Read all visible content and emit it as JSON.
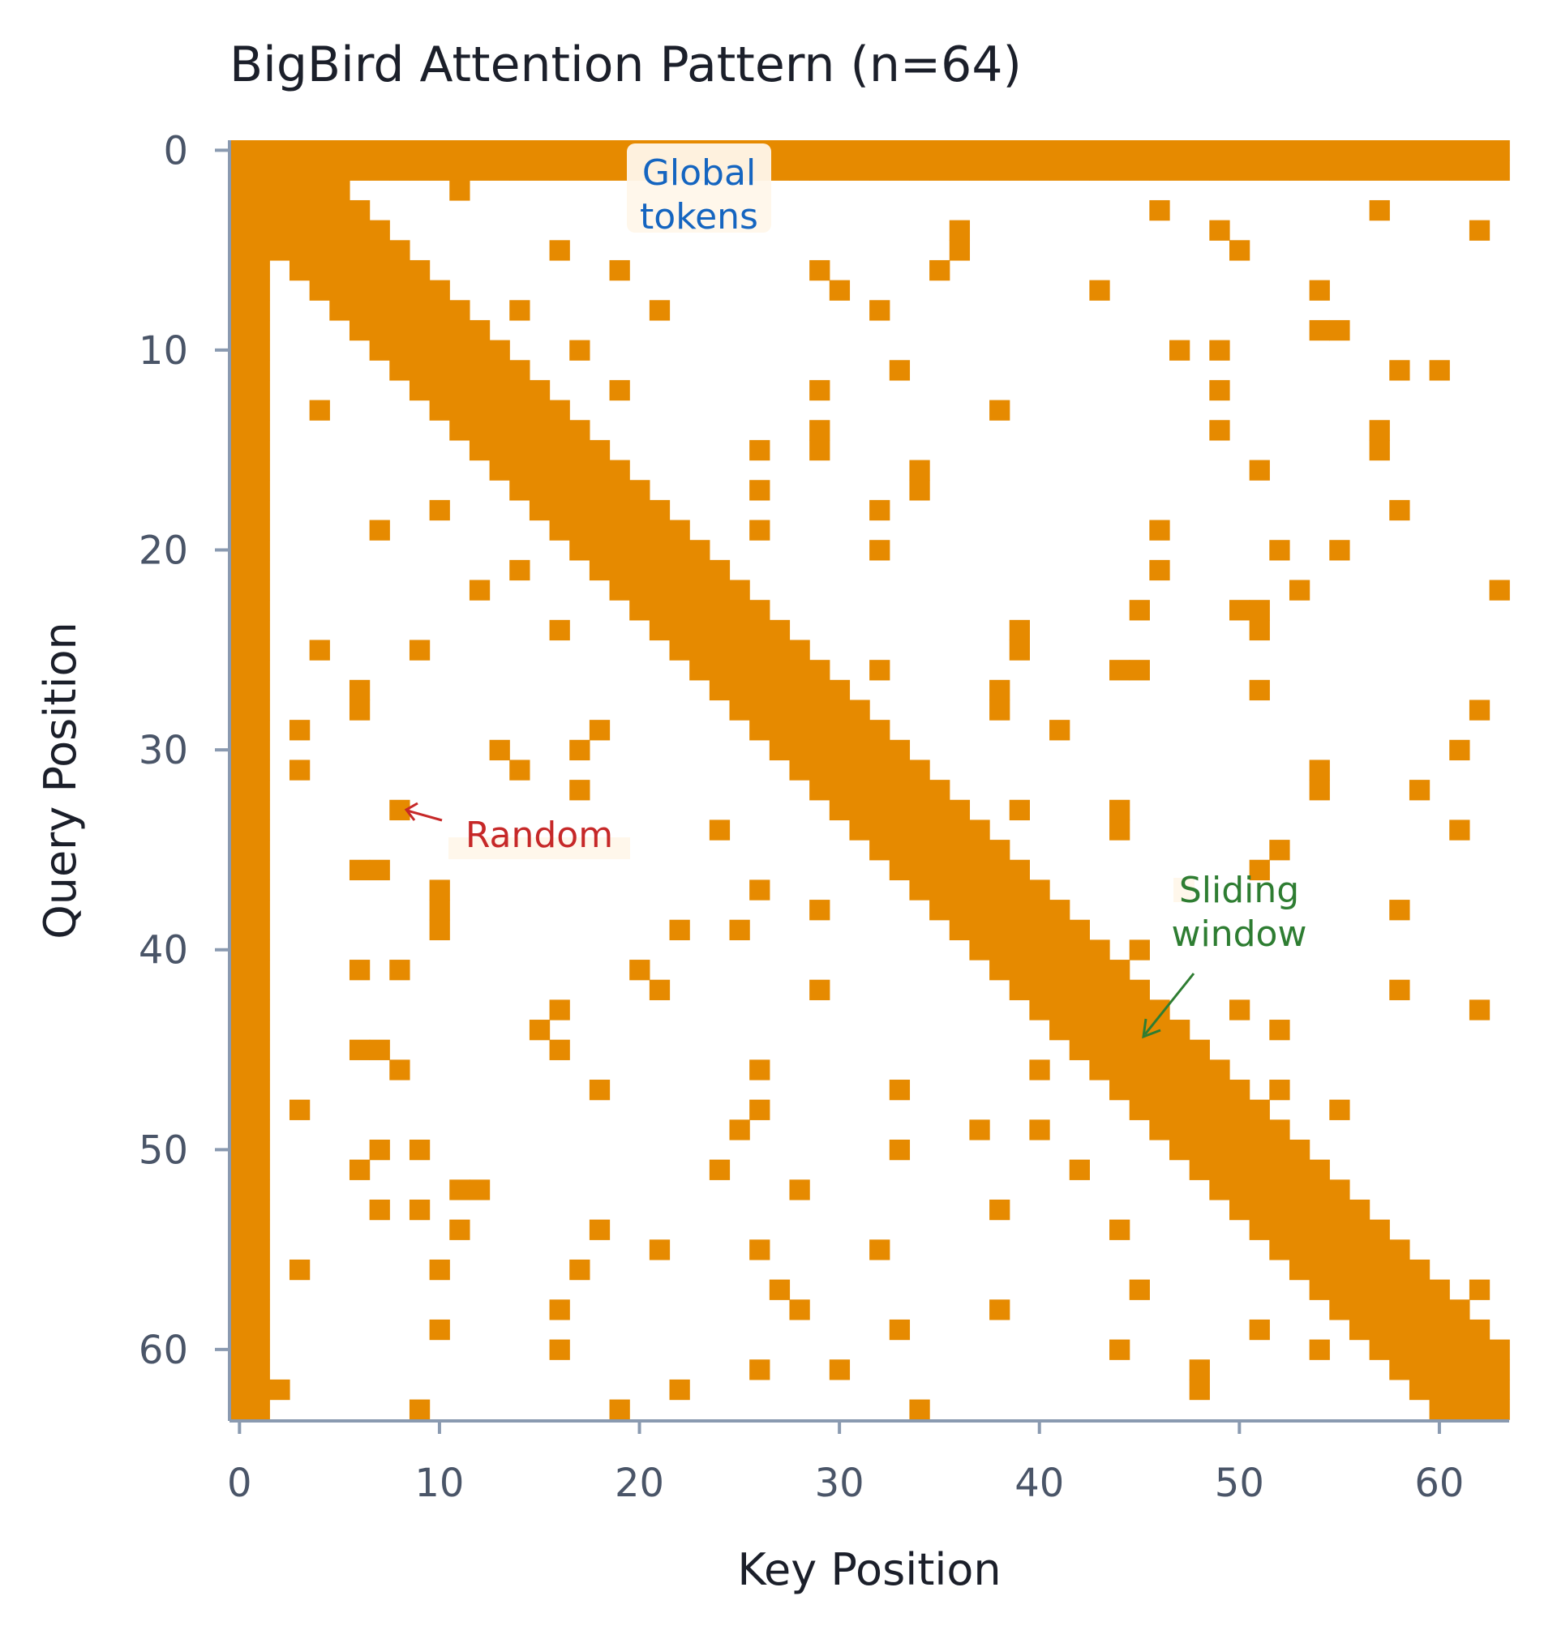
{
  "chart_data": {
    "type": "heatmap",
    "title": "BigBird Attention Pattern (n=64)",
    "xlabel": "Key Position",
    "ylabel": "Query Position",
    "n": 64,
    "xlim": [
      0,
      63
    ],
    "ylim": [
      63,
      0
    ],
    "xticks": [
      "0",
      "10",
      "20",
      "30",
      "40",
      "50",
      "60"
    ],
    "yticks": [
      "0",
      "10",
      "20",
      "30",
      "40",
      "50",
      "60"
    ],
    "grid": false,
    "cell_color": "#e68a00",
    "background_color": "#ffffff",
    "global_tokens": [
      0,
      1
    ],
    "window_radius": 3,
    "random_cells": [
      [
        1,
        10
      ],
      [
        1,
        43
      ],
      [
        1,
        50
      ],
      [
        2,
        11
      ],
      [
        3,
        46
      ],
      [
        3,
        57
      ],
      [
        4,
        49
      ],
      [
        4,
        62
      ],
      [
        4,
        36
      ],
      [
        5,
        16
      ],
      [
        5,
        36
      ],
      [
        5,
        50
      ],
      [
        6,
        19
      ],
      [
        6,
        29
      ],
      [
        6,
        35
      ],
      [
        7,
        30
      ],
      [
        7,
        43
      ],
      [
        7,
        54
      ],
      [
        8,
        14
      ],
      [
        8,
        21
      ],
      [
        8,
        32
      ],
      [
        9,
        54
      ],
      [
        9,
        55
      ],
      [
        10,
        17
      ],
      [
        10,
        47
      ],
      [
        10,
        49
      ],
      [
        11,
        33
      ],
      [
        11,
        58
      ],
      [
        11,
        60
      ],
      [
        12,
        19
      ],
      [
        12,
        29
      ],
      [
        12,
        49
      ],
      [
        13,
        4
      ],
      [
        13,
        38
      ],
      [
        14,
        29
      ],
      [
        14,
        49
      ],
      [
        14,
        57
      ],
      [
        15,
        26
      ],
      [
        15,
        29
      ],
      [
        15,
        57
      ],
      [
        16,
        34
      ],
      [
        16,
        51
      ],
      [
        17,
        26
      ],
      [
        17,
        34
      ],
      [
        18,
        10
      ],
      [
        18,
        32
      ],
      [
        18,
        58
      ],
      [
        19,
        7
      ],
      [
        19,
        26
      ],
      [
        19,
        46
      ],
      [
        20,
        32
      ],
      [
        20,
        52
      ],
      [
        20,
        55
      ],
      [
        21,
        14
      ],
      [
        21,
        46
      ],
      [
        22,
        12
      ],
      [
        22,
        53
      ],
      [
        22,
        63
      ],
      [
        23,
        45
      ],
      [
        23,
        50
      ],
      [
        23,
        51
      ],
      [
        24,
        16
      ],
      [
        24,
        39
      ],
      [
        24,
        51
      ],
      [
        25,
        4
      ],
      [
        25,
        9
      ],
      [
        25,
        39
      ],
      [
        26,
        32
      ],
      [
        26,
        44
      ],
      [
        26,
        45
      ],
      [
        27,
        6
      ],
      [
        27,
        38
      ],
      [
        27,
        51
      ],
      [
        28,
        6
      ],
      [
        28,
        38
      ],
      [
        28,
        62
      ],
      [
        29,
        3
      ],
      [
        29,
        18
      ],
      [
        29,
        41
      ],
      [
        30,
        13
      ],
      [
        30,
        17
      ],
      [
        30,
        61
      ],
      [
        31,
        3
      ],
      [
        31,
        14
      ],
      [
        31,
        54
      ],
      [
        32,
        17
      ],
      [
        32,
        54
      ],
      [
        32,
        59
      ],
      [
        33,
        8
      ],
      [
        33,
        39
      ],
      [
        33,
        44
      ],
      [
        34,
        24
      ],
      [
        34,
        44
      ],
      [
        34,
        61
      ],
      [
        35,
        52
      ],
      [
        36,
        6
      ],
      [
        36,
        7
      ],
      [
        36,
        51
      ],
      [
        37,
        10
      ],
      [
        37,
        26
      ],
      [
        38,
        10
      ],
      [
        38,
        29
      ],
      [
        38,
        58
      ],
      [
        39,
        10
      ],
      [
        39,
        22
      ],
      [
        39,
        25
      ],
      [
        40,
        45
      ],
      [
        41,
        6
      ],
      [
        41,
        8
      ],
      [
        41,
        20
      ],
      [
        42,
        21
      ],
      [
        42,
        29
      ],
      [
        42,
        58
      ],
      [
        43,
        16
      ],
      [
        43,
        50
      ],
      [
        43,
        62
      ],
      [
        44,
        15
      ],
      [
        44,
        52
      ],
      [
        45,
        6
      ],
      [
        45,
        7
      ],
      [
        45,
        16
      ],
      [
        46,
        8
      ],
      [
        46,
        26
      ],
      [
        46,
        40
      ],
      [
        47,
        18
      ],
      [
        47,
        33
      ],
      [
        47,
        52
      ],
      [
        48,
        3
      ],
      [
        48,
        26
      ],
      [
        48,
        55
      ],
      [
        49,
        25
      ],
      [
        49,
        37
      ],
      [
        49,
        40
      ],
      [
        50,
        7
      ],
      [
        50,
        9
      ],
      [
        50,
        33
      ],
      [
        51,
        6
      ],
      [
        51,
        24
      ],
      [
        51,
        42
      ],
      [
        52,
        11
      ],
      [
        52,
        12
      ],
      [
        52,
        28
      ],
      [
        53,
        7
      ],
      [
        53,
        9
      ],
      [
        53,
        38
      ],
      [
        54,
        11
      ],
      [
        54,
        18
      ],
      [
        54,
        44
      ],
      [
        55,
        21
      ],
      [
        55,
        26
      ],
      [
        55,
        32
      ],
      [
        56,
        3
      ],
      [
        56,
        10
      ],
      [
        56,
        17
      ],
      [
        57,
        27
      ],
      [
        57,
        45
      ],
      [
        57,
        62
      ],
      [
        58,
        16
      ],
      [
        58,
        28
      ],
      [
        58,
        38
      ],
      [
        59,
        10
      ],
      [
        59,
        33
      ],
      [
        59,
        51
      ],
      [
        60,
        16
      ],
      [
        60,
        44
      ],
      [
        60,
        54
      ],
      [
        61,
        26
      ],
      [
        61,
        30
      ],
      [
        61,
        48
      ],
      [
        62,
        2
      ],
      [
        62,
        22
      ],
      [
        62,
        48
      ],
      [
        63,
        9
      ],
      [
        63,
        19
      ],
      [
        63,
        34
      ]
    ],
    "annotations": [
      {
        "text": "Global\ntokens",
        "color": "#1565c0"
      },
      {
        "text": "Random",
        "color": "#c62828"
      },
      {
        "text": "Sliding\nwindow",
        "color": "#2e7d32"
      }
    ]
  }
}
